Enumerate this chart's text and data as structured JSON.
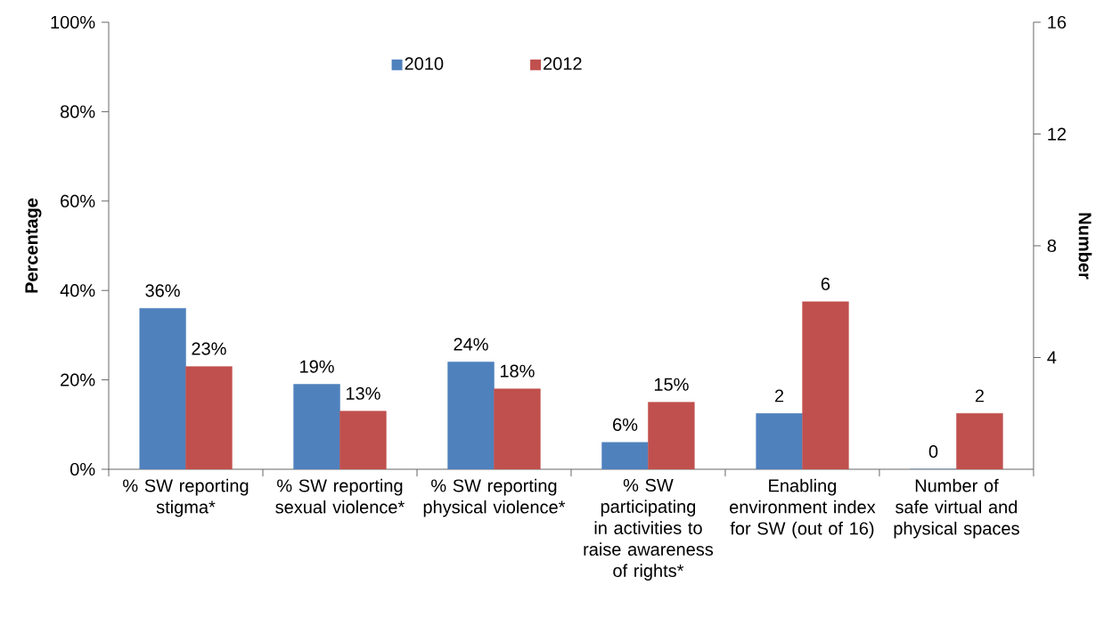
{
  "chart_data": {
    "type": "bar",
    "categories": [
      "% SW reporting stigma*",
      "% SW reporting sexual violence*",
      "% SW reporting physical violence*",
      "% SW participating in activities to raise awareness of rights*",
      "Enabling environment index for SW (out of 16)",
      "Number of safe virtual and physical spaces"
    ],
    "ylabel": "Percentage",
    "y2label": "Number",
    "ylim": [
      0,
      100
    ],
    "yticks": [
      {
        "value": 0,
        "label": "0%"
      },
      {
        "value": 20,
        "label": "20%"
      },
      {
        "value": 40,
        "label": "40%"
      },
      {
        "value": 60,
        "label": "60%"
      },
      {
        "value": 80,
        "label": "80%"
      },
      {
        "value": 100,
        "label": "100%"
      }
    ],
    "y2lim": [
      0,
      16
    ],
    "y2ticks": [
      4,
      8,
      12,
      16
    ],
    "legend": "top",
    "series": [
      {
        "name": "2010",
        "color": "#4f81bd",
        "values": [
          36,
          19,
          24,
          6,
          null,
          null
        ],
        "value_labels": [
          "36%",
          "19%",
          "24%",
          "6%",
          null,
          null
        ]
      },
      {
        "name": "2012",
        "color": "#c0504d",
        "values": [
          23,
          13,
          18,
          15,
          null,
          null
        ],
        "value_labels": [
          "23%",
          "13%",
          "18%",
          "15%",
          null,
          null
        ]
      },
      {
        "color": "#4f81bd",
        "axis": "y2",
        "values": [
          null,
          null,
          null,
          null,
          2,
          0
        ],
        "value_labels": [
          null,
          null,
          null,
          null,
          "2",
          "0"
        ]
      },
      {
        "color": "#c0504d",
        "axis": "y2",
        "values": [
          null,
          null,
          null,
          null,
          6,
          2
        ],
        "value_labels": [
          null,
          null,
          null,
          null,
          "6",
          "2"
        ]
      }
    ]
  }
}
